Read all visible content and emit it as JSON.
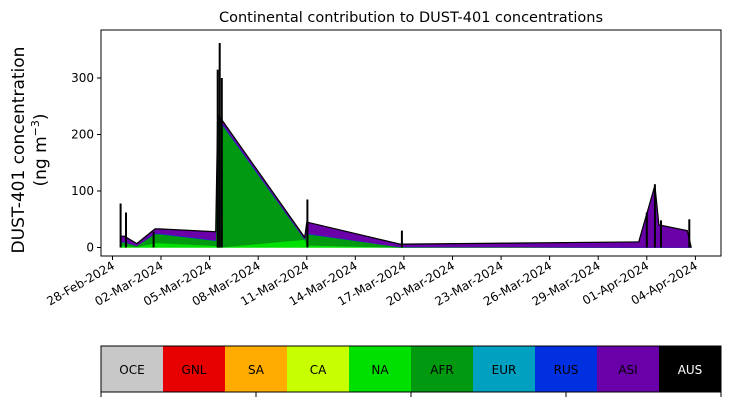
{
  "chart_data": {
    "type": "area",
    "stacked": true,
    "title": "Continental contribution to DUST-401 concentrations",
    "ylabel_line1": "DUST-401 concentration",
    "ylabel_line2_prefix": "(ng m",
    "ylabel_line2_sup": "−3",
    "ylabel_line2_suffix": ")",
    "xlabel": "",
    "ylim": [
      -15,
      385
    ],
    "xlim": [
      "2024-02-27T07:00",
      "2024-04-05T14:00"
    ],
    "yticks": [
      0,
      100,
      200,
      300
    ],
    "ytick_labels": [
      "0",
      "100",
      "200",
      "300"
    ],
    "xticks": [
      "2024-02-28",
      "2024-03-02",
      "2024-03-05",
      "2024-03-08",
      "2024-03-11",
      "2024-03-14",
      "2024-03-17",
      "2024-03-20",
      "2024-03-23",
      "2024-03-26",
      "2024-03-29",
      "2024-04-01",
      "2024-04-04"
    ],
    "xtick_labels": [
      "28-Feb-2024",
      "02-Mar-2024",
      "05-Mar-2024",
      "08-Mar-2024",
      "11-Mar-2024",
      "14-Mar-2024",
      "17-Mar-2024",
      "20-Mar-2024",
      "23-Mar-2024",
      "26-Mar-2024",
      "29-Mar-2024",
      "01-Apr-2024",
      "04-Apr-2024"
    ],
    "grid": false,
    "legend_placement": "bottom",
    "x": [
      "2024-02-28T12:00",
      "2024-02-28T18:00",
      "2024-02-29T12:00",
      "2024-03-01T15:00",
      "2024-03-01T21:00",
      "2024-03-05T09:00",
      "2024-03-05T12:00",
      "2024-03-05T14:00",
      "2024-03-10T21:00",
      "2024-03-11T00:00",
      "2024-03-16T18:00",
      "2024-03-17T00:00",
      "2024-03-31T12:00",
      "2024-04-01T12:00",
      "2024-04-01T18:00",
      "2024-04-03T12:00",
      "2024-04-03T18:00"
    ],
    "series": [
      {
        "name": "OCE",
        "color": "#c8c8c8",
        "values": [
          0,
          0,
          0,
          0,
          0,
          0,
          0,
          0,
          0,
          0,
          0,
          0,
          0,
          0,
          0,
          0,
          0
        ]
      },
      {
        "name": "GNL",
        "color": "#e60000",
        "values": [
          0,
          0,
          0,
          0,
          0,
          0,
          0,
          0,
          0,
          0,
          0,
          0,
          0,
          0,
          0,
          0,
          0
        ]
      },
      {
        "name": "SA",
        "color": "#ffab00",
        "values": [
          0,
          0,
          0,
          0,
          0,
          0,
          0,
          0,
          0,
          0,
          0,
          0,
          0,
          0,
          0,
          0,
          0
        ]
      },
      {
        "name": "CA",
        "color": "#c8ff00",
        "values": [
          0,
          0,
          0,
          0,
          0,
          0,
          0,
          0,
          0,
          0,
          0,
          0,
          0,
          0,
          0,
          0,
          0
        ]
      },
      {
        "name": "NA",
        "color": "#00e000",
        "values": [
          3,
          3,
          1,
          8,
          8,
          3,
          0,
          0,
          14,
          4,
          0,
          0,
          0,
          0,
          0,
          0,
          0
        ]
      },
      {
        "name": "AFR",
        "color": "#00990f",
        "values": [
          6,
          6,
          2,
          16,
          16,
          9,
          225,
          225,
          0,
          20,
          1,
          1,
          0,
          0,
          0,
          0,
          0
        ]
      },
      {
        "name": "EUR",
        "color": "#00a0c0",
        "values": [
          0,
          0,
          0,
          0,
          0,
          0,
          0,
          0,
          0,
          0,
          0,
          0,
          0,
          0,
          0,
          0,
          0
        ]
      },
      {
        "name": "RUS",
        "color": "#0030e0",
        "values": [
          1,
          1,
          0,
          1,
          1,
          1,
          2,
          2,
          1,
          1,
          0,
          0,
          0,
          0,
          0,
          0,
          0
        ]
      },
      {
        "name": "ASI",
        "color": "#6a00a8",
        "values": [
          10,
          10,
          4,
          8,
          8,
          15,
          6,
          6,
          3,
          20,
          5,
          5,
          10,
          110,
          40,
          30,
          0
        ]
      },
      {
        "name": "AUS",
        "color": "#000000",
        "values": [
          0,
          0,
          0,
          0,
          0,
          0,
          0,
          0,
          0,
          0,
          0,
          0,
          0,
          0,
          0,
          0,
          0
        ]
      }
    ],
    "spikes": [
      {
        "x": "2024-02-28T12:00",
        "y": 78
      },
      {
        "x": "2024-02-28T20:00",
        "y": 62
      },
      {
        "x": "2024-03-01T13:00",
        "y": 28
      },
      {
        "x": "2024-03-05T12:00",
        "y": 315
      },
      {
        "x": "2024-03-05T15:00",
        "y": 362
      },
      {
        "x": "2024-03-05T18:00",
        "y": 300
      },
      {
        "x": "2024-03-11T01:00",
        "y": 85
      },
      {
        "x": "2024-03-16T21:00",
        "y": 30
      },
      {
        "x": "2024-04-01T00:00",
        "y": 62
      },
      {
        "x": "2024-04-01T12:00",
        "y": 112
      },
      {
        "x": "2024-04-01T21:00",
        "y": 48
      },
      {
        "x": "2024-04-03T15:00",
        "y": 50
      }
    ]
  },
  "legend": [
    {
      "name": "OCE",
      "color": "#c8c8c8",
      "text_color": "#000000"
    },
    {
      "name": "GNL",
      "color": "#e60000",
      "text_color": "#000000"
    },
    {
      "name": "SA",
      "color": "#ffab00",
      "text_color": "#000000"
    },
    {
      "name": "CA",
      "color": "#c8ff00",
      "text_color": "#000000"
    },
    {
      "name": "NA",
      "color": "#00e000",
      "text_color": "#000000"
    },
    {
      "name": "AFR",
      "color": "#00990f",
      "text_color": "#000000"
    },
    {
      "name": "EUR",
      "color": "#00a0c0",
      "text_color": "#000000"
    },
    {
      "name": "RUS",
      "color": "#0030e0",
      "text_color": "#000000"
    },
    {
      "name": "ASI",
      "color": "#6a00a8",
      "text_color": "#000000"
    },
    {
      "name": "AUS",
      "color": "#000000",
      "text_color": "#ffffff"
    }
  ]
}
